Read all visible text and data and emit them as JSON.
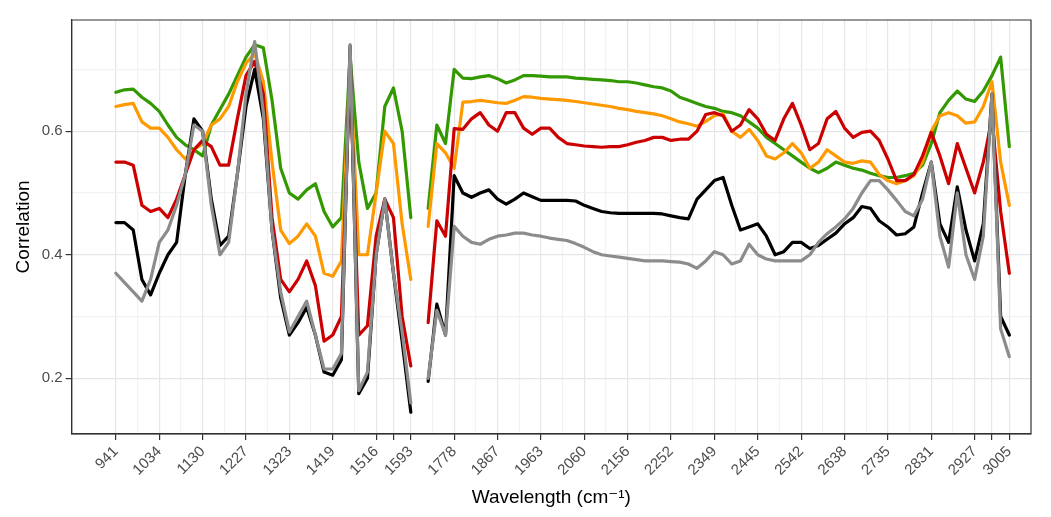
{
  "chart_data": {
    "type": "line",
    "xlabel": "Wavelength (cm⁻¹)",
    "ylabel": "Correlation",
    "categories": [
      "941",
      null,
      null,
      null,
      null,
      "1034",
      null,
      null,
      null,
      null,
      "1130",
      null,
      null,
      null,
      null,
      "1227",
      null,
      null,
      null,
      null,
      "1323",
      null,
      null,
      null,
      null,
      "1419",
      null,
      null,
      null,
      null,
      "1516",
      null,
      null,
      null,
      "1593",
      null,
      null,
      null,
      null,
      "1778",
      null,
      null,
      null,
      null,
      "1867",
      null,
      null,
      null,
      null,
      "1963",
      null,
      null,
      null,
      null,
      "2060",
      null,
      null,
      null,
      null,
      "2156",
      null,
      null,
      null,
      null,
      "2252",
      null,
      null,
      null,
      null,
      "2349",
      null,
      null,
      null,
      null,
      "2445",
      null,
      null,
      null,
      null,
      "2542",
      null,
      null,
      null,
      null,
      "2638",
      null,
      null,
      null,
      null,
      "2735",
      null,
      null,
      null,
      null,
      "2831",
      null,
      null,
      null,
      null,
      "2927",
      null,
      null,
      null,
      "3005"
    ],
    "ylim": [
      0.11,
      0.78
    ],
    "yticks": [
      0.2,
      0.4,
      0.6
    ],
    "grid": true,
    "marker": "none",
    "line_style": "solid",
    "series": [
      {
        "color": "#8c8c8c",
        "values": [
          0.37,
          0.355,
          0.34,
          0.325,
          0.36,
          0.42,
          0.44,
          0.48,
          0.53,
          0.61,
          0.6,
          0.48,
          0.4,
          0.42,
          0.53,
          0.66,
          0.745,
          0.63,
          0.44,
          0.34,
          0.275,
          0.3,
          0.325,
          0.27,
          0.215,
          0.215,
          0.24,
          0.74,
          0.18,
          0.21,
          0.4,
          0.49,
          0.37,
          0.275,
          0.16,
          null,
          0.2,
          0.31,
          0.27,
          0.446,
          0.43,
          0.42,
          0.417,
          0.425,
          0.43,
          0.432,
          0.435,
          0.435,
          0.432,
          0.43,
          0.427,
          0.425,
          0.423,
          0.418,
          0.412,
          0.405,
          0.4,
          0.398,
          0.396,
          0.394,
          0.392,
          0.39,
          0.39,
          0.39,
          0.389,
          0.388,
          0.385,
          0.378,
          0.39,
          0.405,
          0.4,
          0.385,
          0.39,
          0.417,
          0.4,
          0.393,
          0.39,
          0.39,
          0.39,
          0.39,
          0.4,
          0.42,
          0.434,
          0.445,
          0.458,
          0.475,
          0.5,
          0.52,
          0.52,
          0.505,
          0.488,
          0.47,
          0.463,
          0.49,
          0.55,
          0.43,
          0.38,
          0.5,
          0.4,
          0.36,
          0.43,
          0.66,
          0.28,
          0.235
        ]
      },
      {
        "color": "#000000",
        "values": [
          0.452,
          0.452,
          0.44,
          0.36,
          0.335,
          0.37,
          0.4,
          0.42,
          0.53,
          0.62,
          0.6,
          0.49,
          0.415,
          0.43,
          0.53,
          0.64,
          0.7,
          0.62,
          0.44,
          0.33,
          0.27,
          0.29,
          0.315,
          0.27,
          0.21,
          0.205,
          0.23,
          0.738,
          0.175,
          0.2,
          0.4,
          0.49,
          0.37,
          0.26,
          0.145,
          null,
          0.195,
          0.32,
          0.27,
          0.528,
          0.5,
          0.493,
          0.5,
          0.505,
          0.49,
          0.482,
          0.49,
          0.5,
          0.494,
          0.488,
          0.488,
          0.488,
          0.488,
          0.487,
          0.48,
          0.475,
          0.47,
          0.468,
          0.467,
          0.467,
          0.467,
          0.467,
          0.467,
          0.466,
          0.463,
          0.46,
          0.458,
          0.49,
          0.505,
          0.52,
          0.525,
          0.48,
          0.44,
          0.445,
          0.45,
          0.43,
          0.4,
          0.405,
          0.42,
          0.42,
          0.41,
          0.415,
          0.425,
          0.435,
          0.45,
          0.46,
          0.478,
          0.475,
          0.455,
          0.445,
          0.432,
          0.434,
          0.445,
          0.5,
          0.55,
          0.45,
          0.42,
          0.51,
          0.44,
          0.39,
          0.45,
          0.66,
          0.3,
          0.27
        ]
      },
      {
        "color": "#cc0000",
        "values": [
          0.55,
          0.55,
          0.545,
          0.48,
          0.47,
          0.475,
          0.46,
          0.49,
          0.53,
          0.57,
          0.585,
          0.575,
          0.545,
          0.545,
          0.62,
          0.69,
          0.713,
          0.66,
          0.46,
          0.36,
          0.34,
          0.36,
          0.39,
          0.35,
          0.26,
          0.27,
          0.3,
          0.7,
          0.27,
          0.285,
          0.43,
          0.49,
          0.46,
          0.3,
          0.22,
          null,
          0.29,
          0.455,
          0.43,
          0.604,
          0.603,
          0.62,
          0.63,
          0.61,
          0.6,
          0.63,
          0.63,
          0.605,
          0.595,
          0.605,
          0.605,
          0.59,
          0.58,
          0.578,
          0.576,
          0.575,
          0.574,
          0.575,
          0.575,
          0.578,
          0.582,
          0.585,
          0.59,
          0.59,
          0.585,
          0.587,
          0.587,
          0.6,
          0.627,
          0.63,
          0.625,
          0.6,
          0.61,
          0.635,
          0.62,
          0.595,
          0.585,
          0.62,
          0.645,
          0.61,
          0.57,
          0.58,
          0.62,
          0.632,
          0.605,
          0.59,
          0.598,
          0.6,
          0.585,
          0.555,
          0.52,
          0.52,
          0.53,
          0.56,
          0.598,
          0.56,
          0.515,
          0.58,
          0.54,
          0.5,
          0.55,
          0.62,
          0.47,
          0.37
        ]
      },
      {
        "color": "#ff9900",
        "values": [
          0.64,
          0.643,
          0.645,
          0.615,
          0.605,
          0.605,
          0.59,
          0.57,
          0.555,
          0.57,
          0.58,
          0.61,
          0.62,
          0.64,
          0.68,
          0.71,
          0.726,
          0.68,
          0.55,
          0.44,
          0.418,
          0.43,
          0.45,
          0.43,
          0.37,
          0.365,
          0.39,
          0.71,
          0.4,
          0.4,
          0.5,
          0.6,
          0.58,
          0.45,
          0.36,
          null,
          0.446,
          0.58,
          0.565,
          0.54,
          0.647,
          0.648,
          0.65,
          0.648,
          0.646,
          0.645,
          0.65,
          0.656,
          0.655,
          0.653,
          0.652,
          0.651,
          0.65,
          0.648,
          0.646,
          0.644,
          0.642,
          0.64,
          0.637,
          0.635,
          0.632,
          0.63,
          0.628,
          0.625,
          0.62,
          0.615,
          0.612,
          0.608,
          0.616,
          0.625,
          0.628,
          0.6,
          0.59,
          0.603,
          0.585,
          0.56,
          0.555,
          0.565,
          0.58,
          0.565,
          0.54,
          0.55,
          0.57,
          0.56,
          0.55,
          0.548,
          0.552,
          0.55,
          0.53,
          0.52,
          0.515,
          0.52,
          0.528,
          0.55,
          0.6,
          0.625,
          0.63,
          0.625,
          0.613,
          0.615,
          0.64,
          0.68,
          0.55,
          0.48
        ]
      },
      {
        "color": "#339900",
        "values": [
          0.663,
          0.667,
          0.668,
          0.655,
          0.645,
          0.632,
          0.61,
          0.59,
          0.578,
          0.57,
          0.56,
          0.61,
          0.635,
          0.66,
          0.69,
          0.72,
          0.74,
          0.735,
          0.65,
          0.54,
          0.5,
          0.49,
          0.505,
          0.515,
          0.47,
          0.445,
          0.46,
          0.72,
          0.55,
          0.475,
          0.5,
          0.64,
          0.67,
          0.6,
          0.46,
          null,
          0.475,
          0.61,
          0.58,
          0.7,
          0.686,
          0.685,
          0.688,
          0.69,
          0.685,
          0.678,
          0.683,
          0.69,
          0.69,
          0.689,
          0.688,
          0.688,
          0.688,
          0.686,
          0.685,
          0.684,
          0.683,
          0.682,
          0.68,
          0.68,
          0.678,
          0.675,
          0.672,
          0.67,
          0.665,
          0.655,
          0.65,
          0.645,
          0.64,
          0.637,
          0.632,
          0.63,
          0.625,
          0.615,
          0.605,
          0.59,
          0.58,
          0.57,
          0.56,
          0.55,
          0.54,
          0.533,
          0.54,
          0.55,
          0.545,
          0.54,
          0.537,
          0.532,
          0.528,
          0.525,
          0.525,
          0.528,
          0.532,
          0.545,
          0.58,
          0.63,
          0.65,
          0.665,
          0.652,
          0.648,
          0.665,
          0.69,
          0.72,
          0.575
        ]
      }
    ]
  }
}
